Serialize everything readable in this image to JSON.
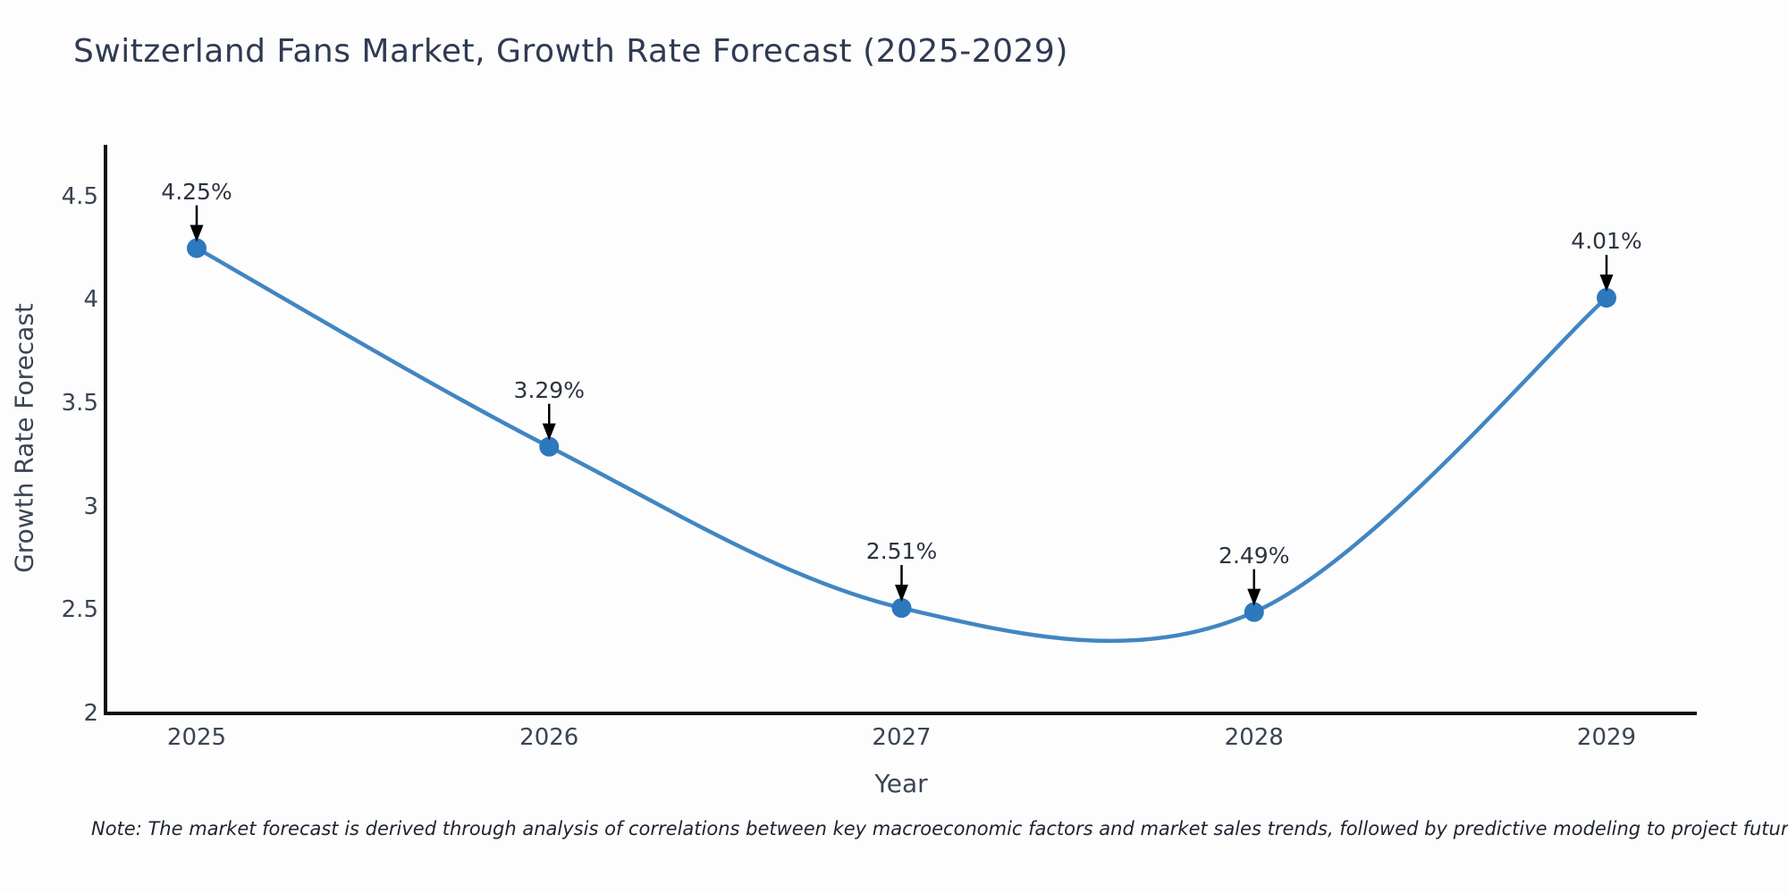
{
  "page": {
    "background": "#fdfdfd"
  },
  "chart_data": {
    "type": "line",
    "title": "Switzerland Fans Market, Growth Rate Forecast (2025-2029)",
    "xlabel": "Year",
    "ylabel": "Growth Rate Forecast",
    "categories": [
      "2025",
      "2026",
      "2027",
      "2028",
      "2029"
    ],
    "series": [
      {
        "name": "Growth Rate Forecast",
        "values": [
          4.25,
          3.29,
          2.51,
          2.49,
          4.01
        ]
      }
    ],
    "point_labels": [
      "4.25%",
      "3.29%",
      "2.51%",
      "2.49%",
      "4.01%"
    ],
    "yticks": [
      2,
      2.5,
      3,
      3.5,
      4,
      4.5
    ],
    "ylim": [
      2,
      4.75
    ],
    "grid": false,
    "legend_position": "none",
    "smooth": true,
    "annotations_have_arrows": true,
    "colors": {
      "line": "#4186c2",
      "marker": "#2e78bd",
      "arrow": "#000000",
      "spine": "#111111",
      "title_text": "#2f3a52",
      "tick_text": "#3a4454",
      "annotation_text": "#2b3440",
      "note_text": "#1d2430"
    }
  },
  "note": {
    "text": "Note: The market forecast is derived through analysis of correlations between key macroeconomic factors and market sales trends, followed by predictive modeling to project future sales"
  }
}
